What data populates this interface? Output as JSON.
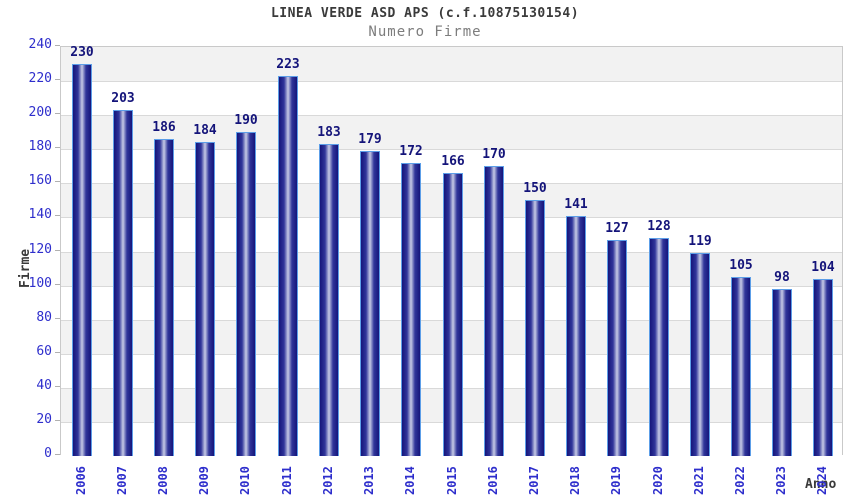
{
  "header": {
    "title": "LINEA VERDE ASD APS (c.f.10875130154)",
    "subtitle": "Numero Firme"
  },
  "chart_data": {
    "type": "bar",
    "title": "LINEA VERDE ASD APS (c.f.10875130154)",
    "subtitle": "Numero Firme",
    "xlabel": "Anno",
    "ylabel": "Firme",
    "categories": [
      "2006",
      "2007",
      "2008",
      "2009",
      "2010",
      "2011",
      "2012",
      "2013",
      "2014",
      "2015",
      "2016",
      "2017",
      "2018",
      "2019",
      "2020",
      "2021",
      "2022",
      "2023",
      "2024"
    ],
    "values": [
      230,
      203,
      186,
      184,
      190,
      223,
      183,
      179,
      172,
      166,
      170,
      150,
      141,
      127,
      128,
      119,
      105,
      98,
      104
    ],
    "ylim": [
      0,
      240
    ],
    "ytick_step": 20,
    "grid": "horizontal-banded",
    "legend": "none",
    "colors": {
      "tick_label_blue": "#2e2ecc",
      "value_label_navy": "#14147a",
      "bar_edge_dark": "#15157b",
      "bar_mid": "#30359a",
      "bar_highlight": "#c6cae6",
      "bar_outline": "#5c9ee8",
      "band_gray": "#f2f2f2",
      "grid_line": "#d9d9d9",
      "plot_border": "#c9c9c9",
      "tick_mark": "#b0b0b0",
      "title_color": "#3a3a3a",
      "subtitle_color": "#7d7d7d"
    }
  }
}
